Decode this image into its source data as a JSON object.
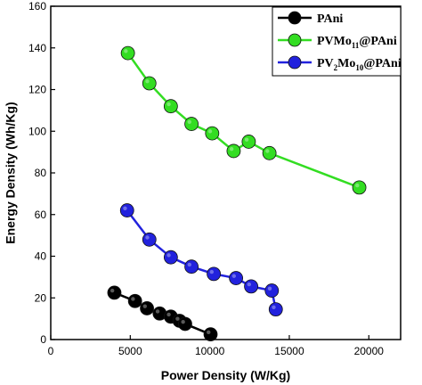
{
  "chart_data": {
    "type": "line",
    "xlabel": "Power Density (W/Kg)",
    "ylabel": "Energy Density (Wh/Kg)",
    "xlim": [
      0,
      22000
    ],
    "ylim": [
      0,
      160
    ],
    "xticks": [
      0,
      5000,
      10000,
      15000,
      20000
    ],
    "yticks": [
      0,
      20,
      40,
      60,
      80,
      100,
      120,
      140,
      160
    ],
    "grid": false,
    "legend_position": "top-right",
    "series": [
      {
        "name": "PAni",
        "legend_parts": [
          {
            "t": "PAni",
            "sub": false
          }
        ],
        "color": "#000000",
        "x": [
          4000,
          5300,
          6050,
          6850,
          7550,
          8100,
          8450,
          10050
        ],
        "y": [
          22.5,
          18.5,
          15,
          12.5,
          11,
          9,
          7.5,
          2.5
        ]
      },
      {
        "name": "PVMo11@PAni",
        "legend_parts": [
          {
            "t": "PVMo",
            "sub": false
          },
          {
            "t": "11",
            "sub": true
          },
          {
            "t": "@PAni",
            "sub": false
          }
        ],
        "color": "#33dd22",
        "x": [
          4850,
          6200,
          7550,
          8850,
          10150,
          11500,
          12450,
          13750,
          19400
        ],
        "y": [
          137.5,
          123,
          112,
          103.5,
          99,
          90.5,
          95,
          89.5,
          73
        ]
      },
      {
        "name": "PV2Mo10@PAni",
        "legend_parts": [
          {
            "t": "PV",
            "sub": false
          },
          {
            "t": "2",
            "sub": true
          },
          {
            "t": "Mo",
            "sub": false
          },
          {
            "t": "10",
            "sub": true
          },
          {
            "t": "@PAni",
            "sub": false
          }
        ],
        "color": "#2222dd",
        "x": [
          4800,
          6200,
          7550,
          8850,
          10250,
          11650,
          12600,
          13900,
          14150
        ],
        "y": [
          62,
          48,
          39.5,
          35,
          31.5,
          29.5,
          25.5,
          23.5,
          14.5
        ]
      }
    ]
  }
}
